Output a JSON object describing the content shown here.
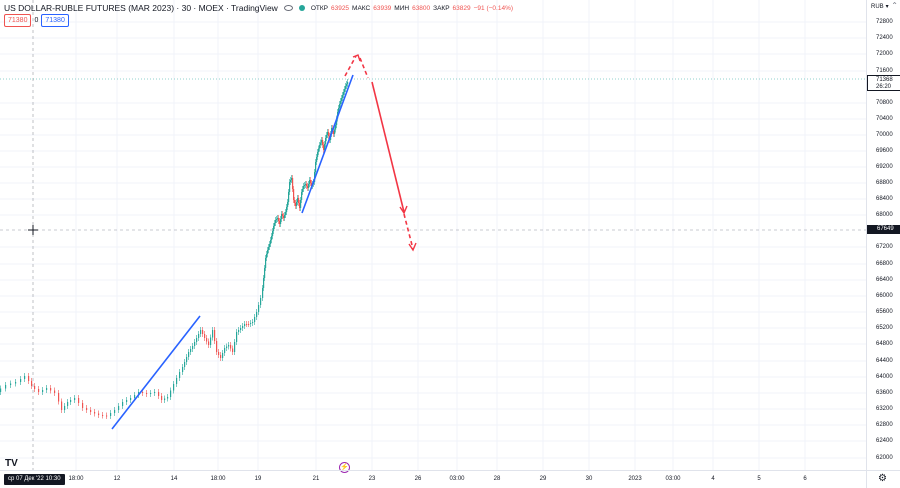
{
  "header": {
    "symbol": "US DOLLAR-RUBLE FUTURES (MAR 2023) · 30 · MOEX · TradingView",
    "open_label": "ОТКР",
    "open_value": "63925",
    "high_label": "МАКС",
    "high_value": "63939",
    "low_label": "МИН",
    "low_value": "63800",
    "close_label": "ЗАКР",
    "close_value": "63829",
    "change": "−91 (−0.14%)"
  },
  "order": {
    "sell": "71380",
    "spread": "0",
    "buy": "71380"
  },
  "price_scale": {
    "currency": "RUB",
    "ticks": [
      "72800",
      "72400",
      "72000",
      "71600",
      "70800",
      "70400",
      "70000",
      "69600",
      "69200",
      "68800",
      "68400",
      "68000",
      "67200",
      "66800",
      "66400",
      "66000",
      "65600",
      "65200",
      "64800",
      "64400",
      "64000",
      "63600",
      "63200",
      "62800",
      "62400",
      "62000"
    ],
    "last_price": "71368",
    "countdown": "26:20",
    "crosshair_price": "67649"
  },
  "time_scale": {
    "crosshair_date": "ср 07 Дек '22",
    "crosshair_time": "10:30",
    "ticks": [
      "18:00",
      "12",
      "14",
      "18:00",
      "19",
      "21",
      "23",
      "26",
      "03:00",
      "28",
      "29",
      "30",
      "2023",
      "03:00",
      "4",
      "5",
      "6"
    ]
  },
  "icons": {
    "logo": "tradingview-logo",
    "lightning": "lightning-icon",
    "gear": "gear-icon"
  },
  "colors": {
    "up": "#26a69a",
    "down": "#ef5350",
    "trend": "#2962ff",
    "forecast": "#f23645"
  }
}
